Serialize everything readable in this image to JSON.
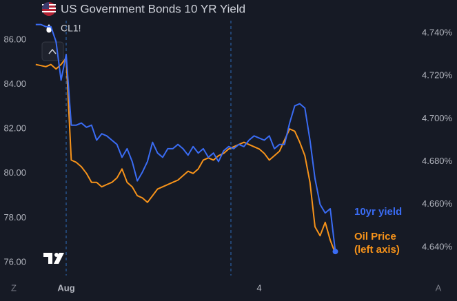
{
  "chart_data": {
    "type": "line",
    "title": "US Government Bonds 10 YR Yield",
    "subtitle": "CL1!",
    "categories": [
      null,
      null,
      null,
      null,
      null,
      null,
      "Aug",
      null,
      null,
      null,
      null,
      null,
      null,
      null,
      null,
      null,
      null,
      null,
      null,
      null,
      null,
      null,
      null,
      null,
      null,
      null,
      null,
      null,
      null,
      null,
      null,
      null,
      null,
      null,
      null,
      null,
      null,
      null,
      null,
      null,
      null,
      null,
      null,
      null,
      "4",
      null,
      null,
      null,
      null,
      null,
      null,
      null,
      null,
      null,
      null,
      null,
      null,
      null,
      null,
      null
    ],
    "series": [
      {
        "name": "10yr yield",
        "color": "#3a6cf4",
        "axis": "y2",
        "values": [
          4.744,
          4.744,
          4.743,
          4.743,
          4.736,
          4.718,
          4.73,
          4.697,
          4.697,
          4.698,
          4.696,
          4.697,
          4.69,
          4.693,
          4.692,
          4.69,
          4.688,
          4.682,
          4.686,
          4.68,
          4.671,
          4.675,
          4.68,
          4.689,
          4.684,
          4.682,
          4.686,
          4.686,
          4.688,
          4.686,
          4.683,
          4.687,
          4.684,
          4.686,
          4.682,
          4.684,
          4.68,
          4.685,
          4.687,
          4.686,
          4.688,
          4.687,
          4.69,
          4.692,
          4.691,
          4.69,
          4.692,
          4.686,
          4.688,
          4.688,
          4.698,
          4.706,
          4.707,
          4.705,
          4.69,
          4.672,
          4.66,
          4.656,
          4.658,
          4.638
        ]
      },
      {
        "name": "Oil Price (left axis)",
        "color": "#f7931a",
        "values": [
          84.9,
          84.85,
          84.8,
          84.9,
          84.7,
          84.9,
          85.2,
          80.6,
          80.5,
          80.3,
          80.0,
          79.6,
          79.6,
          79.4,
          79.5,
          79.6,
          79.8,
          80.2,
          79.6,
          79.4,
          79.0,
          78.9,
          78.7,
          79.0,
          79.3,
          79.4,
          79.5,
          79.6,
          79.7,
          79.9,
          80.1,
          80.0,
          80.2,
          80.6,
          80.7,
          80.6,
          80.8,
          80.9,
          81.1,
          81.2,
          81.3,
          81.4,
          81.3,
          81.2,
          81.1,
          80.9,
          80.6,
          80.8,
          81.0,
          81.5,
          82.0,
          81.9,
          81.4,
          80.8,
          79.6,
          77.6,
          77.2,
          77.8,
          77.0,
          76.4
        ]
      }
    ],
    "ylim": [
      75.41,
      86.87
    ],
    "yticks": [
      {
        "value": 76,
        "label": "76.00"
      },
      {
        "value": 78,
        "label": "78.00"
      },
      {
        "value": 80,
        "label": "80.00"
      },
      {
        "value": 82,
        "label": "82.00"
      },
      {
        "value": 84,
        "label": "84.00"
      },
      {
        "value": 86,
        "label": "86.00"
      }
    ],
    "y2lim": [
      4.6268,
      4.7458
    ],
    "y2ticks": [
      {
        "value": 4.64,
        "label": "4.640%"
      },
      {
        "value": 4.66,
        "label": "4.660%"
      },
      {
        "value": 4.68,
        "label": "4.680%"
      },
      {
        "value": 4.7,
        "label": "4.700%"
      },
      {
        "value": 4.72,
        "label": "4.720%"
      },
      {
        "value": 4.74,
        "label": "4.740%"
      }
    ],
    "grid": false
  }
}
